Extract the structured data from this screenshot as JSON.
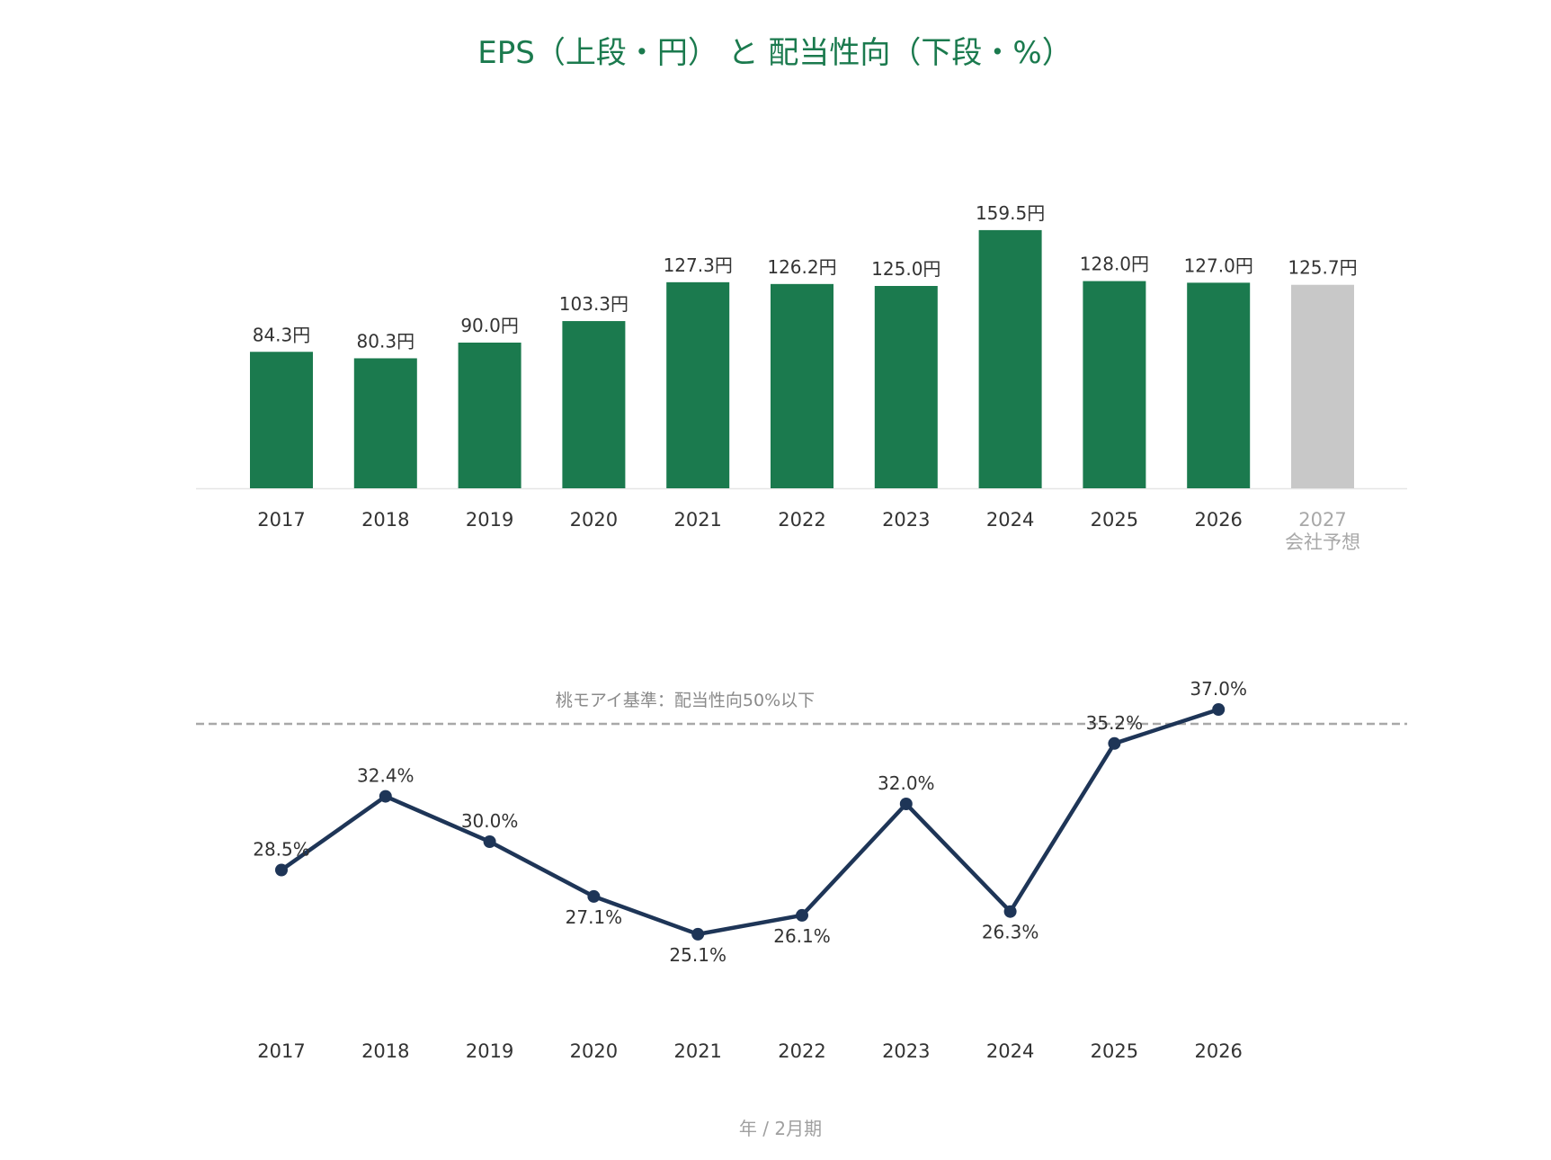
{
  "title": "EPS（上段・円） と 配当性向（下段・%）",
  "colors": {
    "title": "#1b7a4e",
    "bar": "#1b7a4e",
    "bar_forecast": "#c8c8c8",
    "line": "#1e3557",
    "reference_line": "#a8a8a8",
    "axis": "#e6e6e6"
  },
  "chart_data": [
    {
      "type": "bar",
      "name": "EPS",
      "categories": [
        "2017",
        "2018",
        "2019",
        "2020",
        "2021",
        "2022",
        "2023",
        "2024",
        "2025",
        "2026",
        "2027"
      ],
      "values": [
        84.3,
        80.3,
        90.0,
        103.3,
        127.3,
        126.2,
        125.0,
        159.5,
        128.0,
        127.0,
        125.7
      ],
      "value_labels": [
        "84.3円",
        "80.3円",
        "90.0円",
        "103.3円",
        "127.3円",
        "126.2円",
        "125.0円",
        "159.5円",
        "128.0円",
        "127.0円",
        "125.7円"
      ],
      "forecast_index": 10,
      "forecast_note": "会社予想",
      "ylim": [
        0,
        170
      ],
      "grid": false
    },
    {
      "type": "line",
      "name": "配当性向",
      "categories": [
        "2017",
        "2018",
        "2019",
        "2020",
        "2021",
        "2022",
        "2023",
        "2024",
        "2025",
        "2026"
      ],
      "values": [
        28.5,
        32.4,
        30.0,
        27.1,
        25.1,
        26.1,
        32.0,
        26.3,
        35.2,
        37.0
      ],
      "value_labels": [
        "28.5%",
        "32.4%",
        "30.0%",
        "27.1%",
        "25.1%",
        "26.1%",
        "32.0%",
        "26.3%",
        "35.2%",
        "37.0%"
      ],
      "label_positions": [
        "above",
        "above",
        "above",
        "below",
        "below",
        "below",
        "above",
        "below",
        "above",
        "above"
      ],
      "reference_line": {
        "value": 50,
        "label": "桃モアイ基準：配当性向50%以下",
        "style": "dashed"
      },
      "ylim": [
        20,
        50
      ],
      "grid": false
    }
  ],
  "footer": "年 / 2月期"
}
